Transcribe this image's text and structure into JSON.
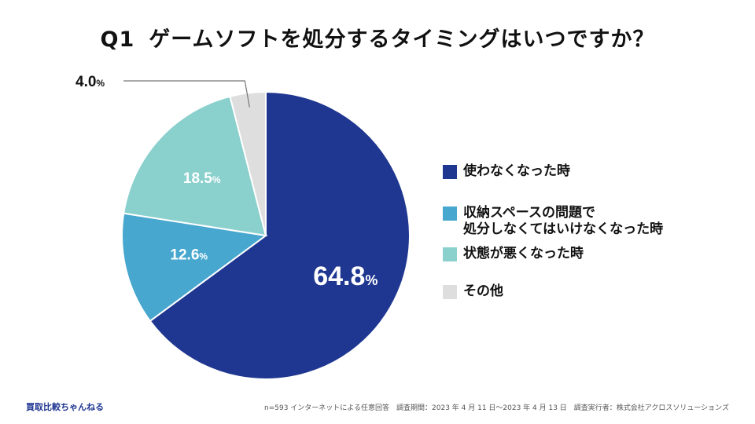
{
  "title": {
    "q": "Q1",
    "text": "ゲームソフトを処分するタイミングはいつですか？"
  },
  "chart_data": {
    "type": "pie",
    "title": "Q1　ゲームソフトを処分するタイミングはいつですか？",
    "unit": "%",
    "slices": [
      {
        "label": "使わなくなった時",
        "value": 64.8,
        "display": "64.8",
        "color": "#1f3790",
        "label_color": "#ffffff"
      },
      {
        "label": "収納スペースの問題で\n処分しなくてはいけなくなった時",
        "value": 12.6,
        "display": "12.6",
        "color": "#47a7cf",
        "label_color": "#ffffff"
      },
      {
        "label": "状態が悪くなった時",
        "value": 18.5,
        "display": "18.5",
        "color": "#8ad0cd",
        "label_color": "#ffffff"
      },
      {
        "label": "その他",
        "value": 4.0,
        "display": "4.0",
        "color": "#dedede",
        "label_color": "#111111"
      }
    ],
    "legend_position": "right"
  },
  "legend": [
    {
      "line1": "使わなくなった時",
      "line2": "",
      "color": "#1f3790"
    },
    {
      "line1": "収納スペースの問題で",
      "line2": "処分しなくてはいけなくなった時",
      "color": "#47a7cf"
    },
    {
      "line1": "状態が悪くなった時",
      "line2": "",
      "color": "#8ad0cd"
    },
    {
      "line1": "その他",
      "line2": "",
      "color": "#dedede"
    }
  ],
  "footer": {
    "brand": "買取比較ちゃんねる",
    "note": "n=593 インターネットによる任意回答　調査期間：2023 年 4 月 11 日〜2023 年 4 月 13 日　調査実行者：株式会社アクロスソリューションズ"
  }
}
